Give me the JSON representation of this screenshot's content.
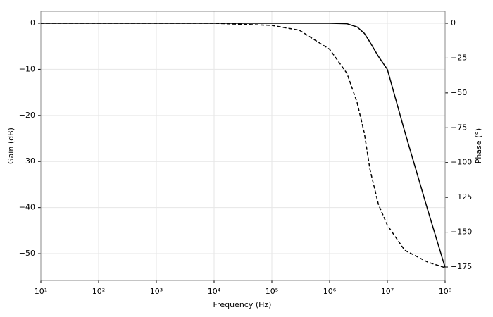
{
  "chart_data": {
    "type": "line",
    "x_label": "Frequency (Hz)",
    "y_label": "Gain (dB)",
    "y2_label": "Phase (°)",
    "log_x": true,
    "grid": true,
    "x": [
      10,
      10000,
      100000,
      300000,
      1000000,
      2000000,
      3000000,
      4000000,
      5000000,
      7000000,
      10000000,
      20000000,
      50000000,
      100000000
    ],
    "series": [
      {
        "name": "Gain",
        "color": "#000000",
        "dash": "solid",
        "values": [
          0,
          0,
          0,
          0,
          0,
          -0.1,
          -0.8,
          -2.2,
          -4.1,
          -7.2,
          -10,
          -23.5,
          -40.5,
          -53
        ]
      },
      {
        "name": "Phase",
        "color": "#000000",
        "dash": "dashed",
        "axis": "y2",
        "values": [
          0,
          0,
          -1.5,
          -5,
          -18.7,
          -36,
          -57,
          -79,
          -105,
          -130,
          -145,
          -163,
          -171.5,
          -175.5
        ]
      }
    ],
    "xlim": [
      10,
      100000000
    ],
    "xticks": [
      {
        "value": 10,
        "label": "10¹"
      },
      {
        "value": 100,
        "label": "10²"
      },
      {
        "value": 1000,
        "label": "10³"
      },
      {
        "value": 10000,
        "label": "10⁴"
      },
      {
        "value": 100000,
        "label": "10⁵"
      },
      {
        "value": 1000000,
        "label": "10⁶"
      },
      {
        "value": 10000000,
        "label": "10⁷"
      },
      {
        "value": 100000000,
        "label": "10⁸"
      }
    ],
    "ylim": [
      -55.8,
      2.6
    ],
    "yticks": [
      0,
      {
        "value": -10,
        "label": "−10"
      },
      {
        "value": -20,
        "label": "−20"
      },
      {
        "value": -30,
        "label": "−30"
      },
      {
        "value": -40,
        "label": "−40"
      },
      {
        "value": -50,
        "label": "−50"
      }
    ],
    "y2lim": [
      -184.6,
      8.6
    ],
    "y2ticks": [
      0,
      {
        "value": -25,
        "label": "−25"
      },
      {
        "value": -50,
        "label": "−50"
      },
      {
        "value": -75,
        "label": "−75"
      },
      {
        "value": -100,
        "label": "−100"
      },
      {
        "value": -125,
        "label": "−125"
      },
      {
        "value": -150,
        "label": "−150"
      },
      {
        "value": -175,
        "label": "−175"
      }
    ]
  }
}
